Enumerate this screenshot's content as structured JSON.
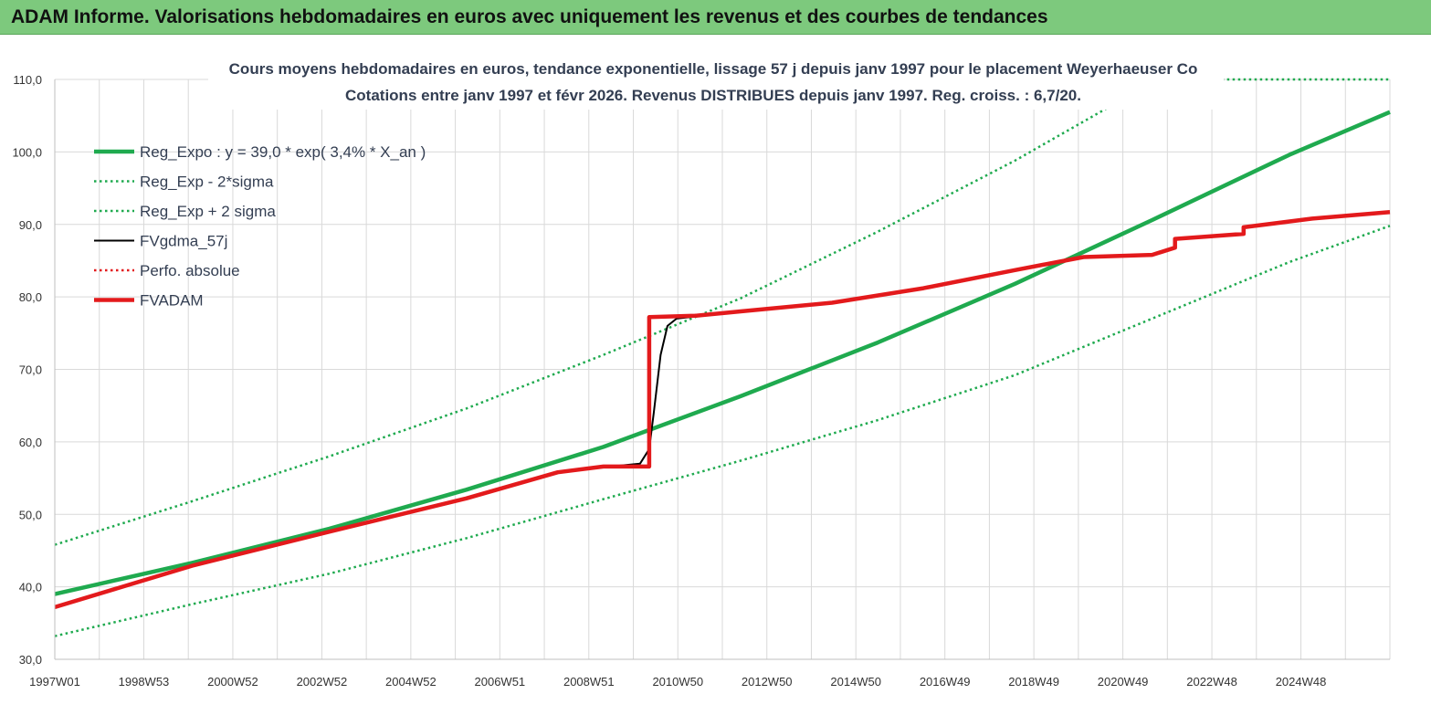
{
  "header": {
    "title": "ADAM Informe. Valorisations hebdomadaires en euros avec uniquement les revenus et des courbes de tendances"
  },
  "colors": {
    "header_bg": "#7dc97d",
    "trend": "#1faa4f",
    "black": "#000000",
    "red": "#e31a1c",
    "grid": "#d9d9d9",
    "text": "#333e52"
  },
  "chart_data": {
    "type": "line",
    "title": "Cours moyens hebdomadaires en euros, tendance exponentielle, lissage 57 j depuis janv 1997 pour le placement Weyerhaeuser Co",
    "subtitle": "Cotations entre janv 1997 et févr 2026. Revenus DISTRIBUES depuis janv 1997. Reg. croiss. : 6,7/20.",
    "x_tick_labels": [
      "1997W01",
      "1998W53",
      "2000W52",
      "2002W52",
      "2004W52",
      "2006W51",
      "2008W51",
      "2010W50",
      "2012W50",
      "2014W50",
      "2016W49",
      "2018W49",
      "2020W49",
      "2022W48",
      "2024W48"
    ],
    "x_range": [
      1997.0,
      2026.2
    ],
    "y_tick_labels": [
      "30,0",
      "40,0",
      "50,0",
      "60,0",
      "70,0",
      "80,0",
      "90,0",
      "100,0",
      "110,0"
    ],
    "y_ticks": [
      30,
      40,
      50,
      60,
      70,
      80,
      90,
      100,
      110
    ],
    "ylim": [
      30,
      110
    ],
    "grid": true,
    "legend_position": "top-left",
    "legend": [
      {
        "label": "Reg_Expo : y = 39,0 * exp( 3,4% *  X_an )",
        "color": "#1faa4f",
        "style": "solid-thick"
      },
      {
        "label": "Reg_Exp - 2*sigma",
        "color": "#1faa4f",
        "style": "dotted"
      },
      {
        "label": "Reg_Exp + 2 sigma",
        "color": "#1faa4f",
        "style": "dotted"
      },
      {
        "label": "FVgdma_57j",
        "color": "#000000",
        "style": "solid"
      },
      {
        "label": "Perfo. absolue",
        "color": "#e31a1c",
        "style": "dotted"
      },
      {
        "label": "FVADAM",
        "color": "#e31a1c",
        "style": "solid-thick"
      }
    ],
    "series": [
      {
        "name": "Reg_Expo : y = 39,0 * exp( 3,4% *  X_an )",
        "x": [
          1997.0,
          2000.0,
          2003.0,
          2006.0,
          2009.0,
          2012.0,
          2015.0,
          2018.0,
          2021.0,
          2024.0,
          2026.2
        ],
        "y": [
          39.0,
          43.3,
          48.0,
          53.4,
          59.3,
          66.3,
          73.7,
          81.8,
          90.6,
          99.6,
          105.5
        ]
      },
      {
        "name": "Reg_Exp - 2*sigma",
        "x": [
          1997.0,
          2000.0,
          2003.0,
          2006.0,
          2009.0,
          2012.0,
          2015.0,
          2018.0,
          2021.0,
          2024.0,
          2026.2
        ],
        "y": [
          33.2,
          37.6,
          41.8,
          46.7,
          52.1,
          57.4,
          63.0,
          69.2,
          77.0,
          84.8,
          89.8
        ]
      },
      {
        "name": "Reg_Exp + 2 sigma",
        "x": [
          1997.0,
          2000.0,
          2003.0,
          2006.0,
          2009.0,
          2012.0,
          2015.0,
          2018.0,
          2020.0,
          2022.5,
          2026.2
        ],
        "y": [
          45.8,
          51.8,
          58.0,
          64.6,
          72.0,
          79.8,
          89.0,
          98.8,
          106.0,
          110.0,
          110.0
        ]
      },
      {
        "name": "FVgdma_57j",
        "x": [
          2009.0,
          2009.8,
          2010.0,
          2010.1,
          2010.25,
          2010.4,
          2010.6,
          2011.0
        ],
        "y": [
          56.5,
          57.0,
          59.0,
          64.0,
          72.0,
          76.0,
          77.0,
          77.3
        ]
      },
      {
        "name": "FVADAM",
        "x": [
          1997.0,
          2000.0,
          2003.0,
          2006.0,
          2008.0,
          2009.0,
          2010.0,
          2010.0,
          2011.0,
          2012.0,
          2014.0,
          2016.0,
          2018.0,
          2019.5,
          2021.0,
          2021.5,
          2021.5,
          2023.0,
          2023.0,
          2024.5,
          2026.2
        ],
        "y": [
          37.2,
          42.9,
          47.6,
          52.2,
          55.8,
          56.6,
          56.6,
          77.2,
          77.4,
          78.0,
          79.2,
          81.2,
          83.7,
          85.5,
          85.8,
          86.8,
          88.0,
          88.7,
          89.6,
          90.8,
          91.7
        ]
      }
    ]
  }
}
